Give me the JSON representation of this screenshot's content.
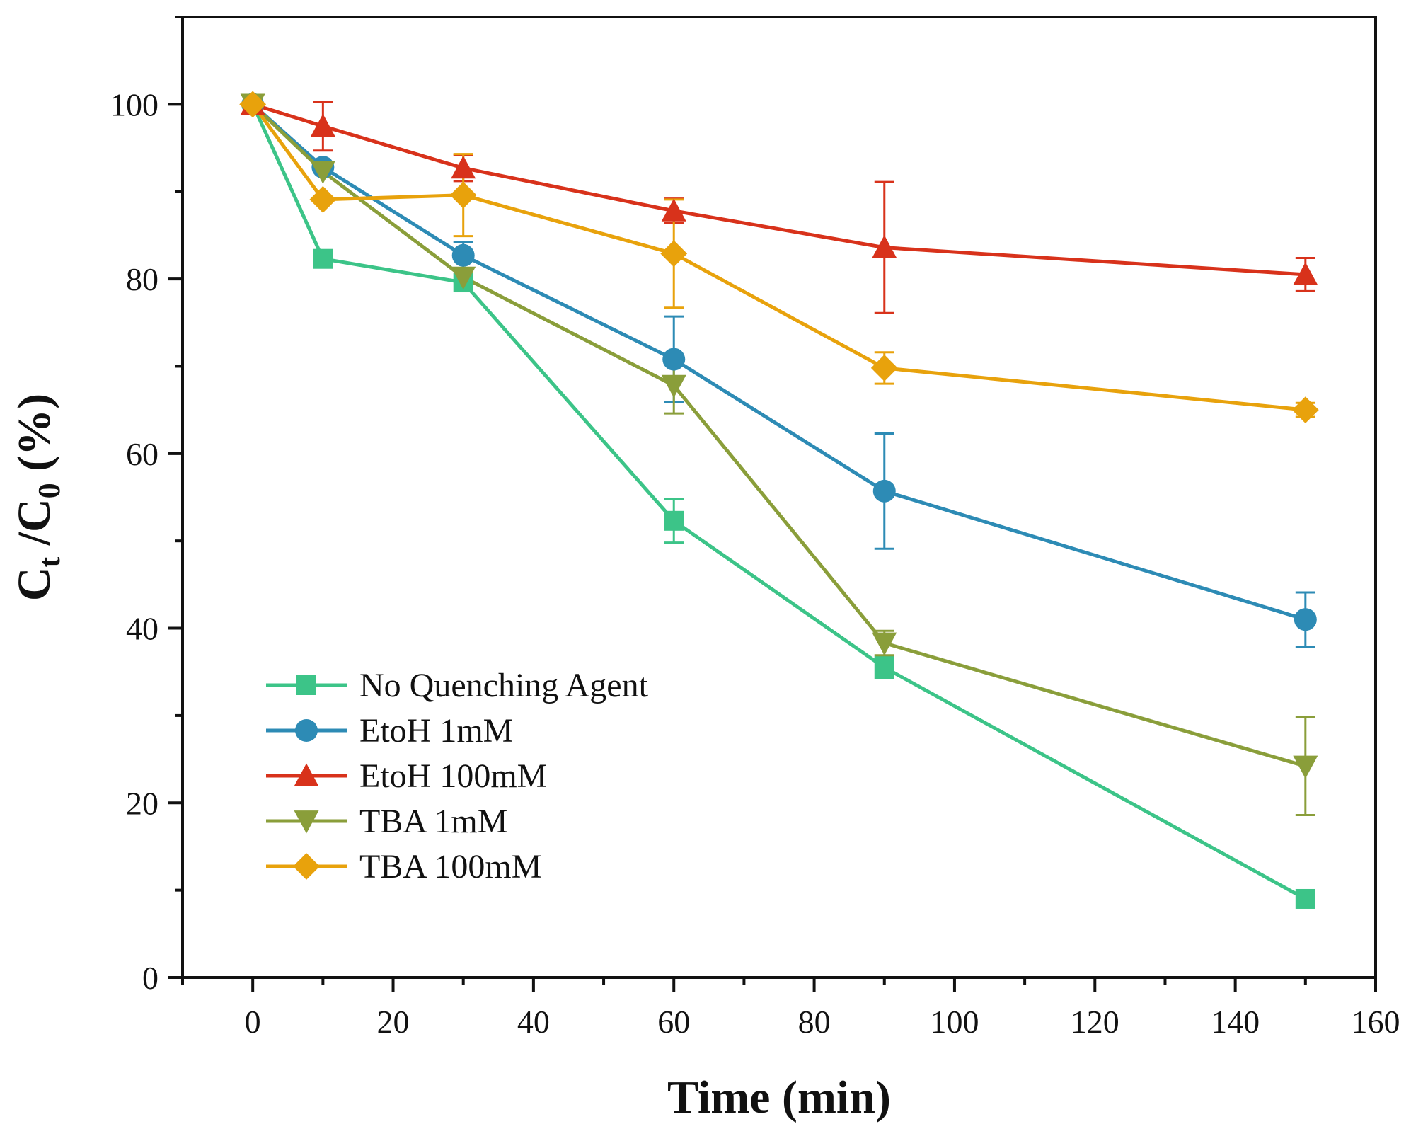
{
  "chart_data": {
    "type": "line",
    "title": "",
    "xlabel": "Time (min)",
    "ylabel": {
      "prefix_a": "C",
      "sub_a": "t",
      "mid": " /C",
      "sub_b": "0",
      "suffix": " (%)"
    },
    "xlim": [
      -10,
      160
    ],
    "ylim": [
      0,
      110
    ],
    "x_ticks": [
      0,
      20,
      40,
      60,
      80,
      100,
      120,
      140,
      160
    ],
    "y_ticks": [
      0,
      20,
      40,
      60,
      80,
      100
    ],
    "x_minor_step": 10,
    "y_minor_step": 10,
    "grid": false,
    "legend_position": "lower-left",
    "series": [
      {
        "name": "No Quenching Agent",
        "color": "#3CC488",
        "marker": "square",
        "x": [
          0,
          10,
          30,
          60,
          90,
          150
        ],
        "y": [
          100,
          82.3,
          79.6,
          52.3,
          35.5,
          9.0
        ],
        "err": [
          0,
          0,
          0,
          2.5,
          1.2,
          0
        ]
      },
      {
        "name": "EtoH 1mM",
        "color": "#2D8BB5",
        "marker": "circle",
        "x": [
          0,
          10,
          30,
          60,
          90,
          150
        ],
        "y": [
          100,
          92.8,
          82.7,
          70.8,
          55.7,
          41.0
        ],
        "err": [
          0,
          0,
          1.5,
          4.9,
          6.6,
          3.1
        ]
      },
      {
        "name": "EtoH 100mM",
        "color": "#D8321B",
        "marker": "triangle-up",
        "x": [
          0,
          10,
          30,
          60,
          90,
          150
        ],
        "y": [
          100,
          97.5,
          92.7,
          87.8,
          83.6,
          80.5
        ],
        "err": [
          0,
          2.8,
          1.5,
          1.4,
          7.5,
          1.9
        ]
      },
      {
        "name": "TBA 1mM",
        "color": "#8A9E3A",
        "marker": "triangle-down",
        "x": [
          0,
          10,
          30,
          60,
          90,
          150
        ],
        "y": [
          100,
          92.3,
          80.2,
          67.8,
          38.3,
          24.2
        ],
        "err": [
          0,
          0,
          0,
          3.2,
          1.4,
          5.6
        ]
      },
      {
        "name": "TBA 100mM",
        "color": "#E8A20C",
        "marker": "diamond",
        "x": [
          0,
          10,
          30,
          60,
          90,
          150
        ],
        "y": [
          100,
          89.1,
          89.6,
          82.9,
          69.8,
          65.0
        ],
        "err": [
          0,
          0,
          4.7,
          6.2,
          1.8,
          0.8
        ]
      }
    ]
  }
}
